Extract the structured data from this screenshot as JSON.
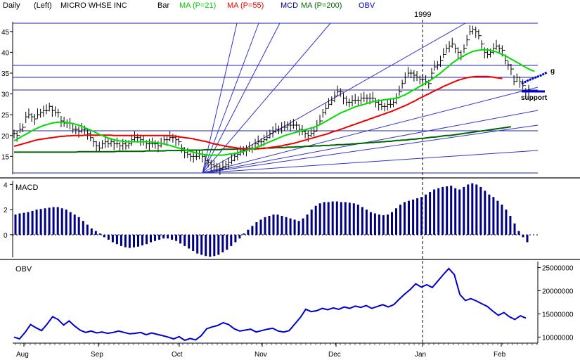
{
  "header": {
    "period": "Daily",
    "side": "(Left)",
    "security": "MICRO WHSE INC",
    "style": "Bar",
    "ma21": "MA (P=21)",
    "ma55": "MA (P=55)",
    "mcd": "MCD",
    "ma200": "MA (P=200)",
    "obv": "OBV",
    "year_marker": "1999"
  },
  "colors": {
    "ma21": "#00dd00",
    "ma55": "#ee0000",
    "ma200": "#006600",
    "macd": "#000080",
    "obv": "#0000cc",
    "gann": "#3333cc",
    "price": "#000000"
  },
  "annotations": {
    "support": "support",
    "g": "g"
  },
  "panels": {
    "macd_title": "MACD",
    "obv_title": "OBV"
  },
  "chart_data": [
    {
      "type": "bar",
      "name_shown": "MICRO WHSE INC",
      "ylim": [
        11,
        47
      ],
      "yticks": [
        "15",
        "20",
        "25",
        "30",
        "35",
        "40",
        "45"
      ],
      "xticks": [
        "Aug",
        "Sep",
        "Oct",
        "Nov",
        "Dec",
        "Jan",
        "Feb"
      ],
      "x_start": "1998-08-03",
      "x_end": "1999-02-12",
      "close": [
        20.5,
        20,
        21.5,
        22,
        24.5,
        25,
        24.5,
        24,
        25,
        25.5,
        26,
        26,
        27,
        26,
        25.5,
        25.5,
        23.5,
        23,
        23,
        23,
        21.5,
        21.5,
        21,
        21.5,
        21.5,
        20.5,
        19.5,
        18.5,
        17.5,
        17,
        18,
        18.5,
        18,
        18.5,
        18,
        18,
        17.5,
        18,
        17.5,
        18,
        19,
        19.5,
        19.5,
        19,
        18.5,
        18,
        18,
        18,
        18,
        17.5,
        18,
        19,
        19,
        19.5,
        19.5,
        19,
        18.5,
        17,
        16,
        15.5,
        15,
        15,
        15,
        15.5,
        15,
        14,
        13.5,
        13,
        12.5,
        12.5,
        12,
        12.5,
        13,
        13.5,
        14,
        15,
        15.5,
        16,
        16.5,
        16.5,
        17,
        17,
        18,
        18.5,
        18.5,
        19,
        19.5,
        20.5,
        21,
        21.5,
        21.5,
        22,
        22,
        22.5,
        22.5,
        22.5,
        22.5,
        21.5,
        21,
        20.5,
        20,
        20.5,
        21,
        22.5,
        23.5,
        25.5,
        26.5,
        27.5,
        28.5,
        29.5,
        30.5,
        30.5,
        29,
        28,
        28,
        28.5,
        28.5,
        28.5,
        29,
        29,
        29,
        29,
        29,
        28,
        27.5,
        27,
        27,
        27.5,
        27.5,
        28,
        29,
        30.5,
        32.5,
        34,
        35,
        35,
        34.5,
        34,
        33.5,
        33.5,
        33,
        32.5,
        35,
        36.5,
        37,
        38,
        39.5,
        41,
        41.5,
        42,
        41,
        40,
        39,
        41,
        43,
        45,
        45.5,
        45,
        44,
        42,
        40,
        39.5,
        40,
        41,
        41.5,
        41,
        40.5,
        38,
        37,
        36,
        33,
        34,
        33,
        32,
        30.5,
        31
      ],
      "ma21": [
        18.7,
        19.1,
        19.5,
        19.9,
        20.3,
        20.7,
        21.1,
        21.5,
        21.8,
        22.1,
        22.4,
        22.6,
        22.8,
        23,
        23.1,
        23.2,
        23.2,
        23.2,
        23.1,
        23,
        22.9,
        22.7,
        22.5,
        22.2,
        21.9,
        21.6,
        21.3,
        21,
        20.6,
        20.3,
        20,
        19.7,
        19.4,
        19.2,
        19,
        18.8,
        18.7,
        18.6,
        18.5,
        18.5,
        18.5,
        18.5,
        18.5,
        18.5,
        18.5,
        18.5,
        18.5,
        18.4,
        18.3,
        18.2,
        18.1,
        18,
        17.8,
        17.6,
        17.4,
        17.2,
        17,
        16.8,
        16.6,
        16.4,
        16.2,
        16,
        15.8,
        15.6,
        15.5,
        15.4,
        15.3,
        15.3,
        15.3,
        15.3,
        15.3,
        15.3,
        15.4,
        15.5,
        15.6,
        15.7,
        15.8,
        16,
        16.2,
        16.4,
        16.6,
        16.8,
        17,
        17.3,
        17.6,
        17.9,
        18.2,
        18.5,
        18.8,
        19.1,
        19.4,
        19.7,
        20,
        20.2,
        20.4,
        20.6,
        20.8,
        21,
        21.2,
        21.4,
        21.6,
        21.8,
        22,
        22.3,
        22.6,
        23,
        23.4,
        23.8,
        24.2,
        24.6,
        25,
        25.4,
        25.7,
        26,
        26.3,
        26.6,
        26.9,
        27.1,
        27.3,
        27.5,
        27.7,
        27.9,
        28.1,
        28.3,
        28.4,
        28.5,
        28.6,
        28.7,
        28.8,
        28.9,
        29,
        29.2,
        29.5,
        29.8,
        30.2,
        30.6,
        31,
        31.4,
        31.8,
        32.2,
        32.6,
        33,
        33.5,
        34,
        34.5,
        35,
        35.6,
        36.2,
        36.8,
        37.4,
        37.9,
        38.4,
        38.8,
        39.2,
        39.6,
        39.9,
        40.2,
        40.4,
        40.5,
        40.6,
        40.6,
        40.6,
        40.5,
        40.3,
        40.1,
        39.8,
        39.5,
        39.2,
        38.8,
        38.4,
        38,
        37.6,
        37.2,
        36.8,
        36.4,
        36,
        35.7,
        35.4
      ],
      "ma55": [
        17.4,
        17.6,
        17.8,
        18,
        18.2,
        18.4,
        18.6,
        18.8,
        19,
        19.1,
        19.2,
        19.3,
        19.4,
        19.5,
        19.6,
        19.7,
        19.8,
        19.8,
        19.9,
        19.9,
        20,
        20,
        20,
        20,
        20.1,
        20.1,
        20.1,
        20.1,
        20.1,
        20.1,
        20.1,
        20.1,
        20.1,
        20.1,
        20,
        20,
        20,
        20,
        20,
        20,
        20,
        20,
        20,
        20,
        20,
        20,
        20,
        20,
        20,
        20,
        20,
        20,
        20,
        19.9,
        19.9,
        19.8,
        19.7,
        19.6,
        19.5,
        19.4,
        19.3,
        19.2,
        19,
        18.9,
        18.7,
        18.6,
        18.4,
        18.2,
        18,
        17.9,
        17.7,
        17.6,
        17.4,
        17.3,
        17.2,
        17.1,
        17,
        16.9,
        16.9,
        16.8,
        16.8,
        16.8,
        16.8,
        16.8,
        16.9,
        16.9,
        17,
        17.1,
        17.2,
        17.3,
        17.4,
        17.5,
        17.7,
        17.8,
        18,
        18.1,
        18.3,
        18.5,
        18.7,
        18.9,
        19.1,
        19.3,
        19.5,
        19.7,
        19.9,
        20.1,
        20.3,
        20.5,
        20.8,
        21,
        21.2,
        21.5,
        21.7,
        22,
        22.2,
        22.5,
        22.7,
        23,
        23.2,
        23.5,
        23.7,
        24,
        24.2,
        24.5,
        24.7,
        25,
        25.2,
        25.5,
        25.7,
        26,
        26.3,
        26.6,
        26.9,
        27.2,
        27.5,
        27.9,
        28.2,
        28.6,
        29,
        29.3,
        29.7,
        30,
        30.4,
        30.7,
        31.1,
        31.4,
        31.8,
        32.1,
        32.4,
        32.7,
        33,
        33.3,
        33.5,
        33.7,
        33.9,
        34,
        34.1,
        34.2,
        34.2,
        34.2,
        34.2,
        34.2,
        34.1,
        34,
        33.9,
        33.8,
        33.7
      ],
      "ma200": [
        16,
        16,
        16,
        16,
        16,
        16,
        16,
        16,
        16,
        16,
        16,
        16,
        16,
        16,
        16,
        16,
        16,
        16,
        16,
        16,
        16,
        16,
        16.1,
        16.1,
        16.1,
        16.1,
        16.1,
        16.1,
        16.1,
        16.1,
        16.1,
        16.1,
        16.1,
        16.1,
        16.1,
        16.2,
        16.2,
        16.2,
        16.2,
        16.2,
        16.2,
        16.2,
        16.2,
        16.2,
        16.2,
        16.3,
        16.3,
        16.3,
        16.3,
        16.3,
        16.3,
        16.3,
        16.4,
        16.4,
        16.4,
        16.4,
        16.4,
        16.4,
        16.4,
        16.5,
        16.5,
        16.5,
        16.5,
        16.5,
        16.5,
        16.6,
        16.6,
        16.6,
        16.6,
        16.6,
        16.6,
        16.7,
        16.7,
        16.7,
        16.7,
        16.7,
        16.8,
        16.8,
        16.8,
        16.8,
        16.8,
        16.9,
        16.9,
        16.9,
        16.9,
        17,
        17,
        17,
        17,
        17.1,
        17.1,
        17.1,
        17.1,
        17.2,
        17.2,
        17.2,
        17.3,
        17.3,
        17.3,
        17.4,
        17.4,
        17.4,
        17.5,
        17.5,
        17.5,
        17.6,
        17.6,
        17.6,
        17.7,
        17.7,
        17.8,
        17.8,
        17.8,
        17.9,
        17.9,
        18,
        18,
        18.1,
        18.1,
        18.2,
        18.2,
        18.3,
        18.3,
        18.4,
        18.4,
        18.5,
        18.5,
        18.6,
        18.6,
        18.7,
        18.8,
        18.8,
        18.9,
        18.9,
        19,
        19.1,
        19.1,
        19.2,
        19.3,
        19.3,
        19.4,
        19.5,
        19.6,
        19.6,
        19.7,
        19.8,
        19.9,
        20,
        20,
        20.1,
        20.2,
        20.3,
        20.4,
        20.5,
        20.6,
        20.7,
        20.8,
        20.9,
        21,
        21.1,
        21.2,
        21.3,
        21.4,
        21.5,
        21.6,
        21.7,
        21.8,
        21.9,
        22,
        22.1
      ]
    },
    {
      "type": "bar",
      "name_shown": "MACD",
      "ylim": [
        -1.8,
        4.3
      ],
      "yticks": [
        "0",
        "2",
        "4"
      ],
      "values": [
        1.6,
        1.7,
        1.75,
        1.8,
        1.9,
        2.0,
        2.05,
        2.1,
        2.15,
        2.2,
        2.2,
        2.1,
        2.0,
        1.8,
        1.6,
        1.4,
        1.1,
        0.8,
        0.5,
        0.3,
        0.1,
        -0.2,
        -0.4,
        -0.6,
        -0.75,
        -0.9,
        -1.0,
        -1.05,
        -1.0,
        -0.95,
        -0.85,
        -0.75,
        -0.6,
        -0.5,
        -0.4,
        -0.3,
        -0.3,
        -0.4,
        -0.5,
        -0.7,
        -0.9,
        -1.1,
        -1.3,
        -1.5,
        -1.6,
        -1.7,
        -1.75,
        -1.7,
        -1.6,
        -1.4,
        -1.2,
        -0.9,
        -0.6,
        -0.3,
        0.1,
        0.4,
        0.7,
        1.0,
        1.2,
        1.4,
        1.5,
        1.6,
        1.6,
        1.5,
        1.4,
        1.3,
        1.2,
        1.1,
        1.3,
        1.6,
        2.0,
        2.3,
        2.5,
        2.6,
        2.6,
        2.65,
        2.65,
        2.6,
        2.6,
        2.55,
        2.5,
        2.4,
        2.2,
        2.0,
        1.8,
        1.7,
        1.6,
        1.55,
        1.6,
        1.8,
        2.1,
        2.4,
        2.6,
        2.7,
        2.8,
        2.9,
        3.0,
        3.2,
        3.4,
        3.6,
        3.7,
        3.8,
        3.85,
        3.9,
        3.7,
        3.6,
        3.8,
        4.0,
        4.1,
        4.0,
        3.8,
        3.5,
        3.2,
        3.0,
        2.7,
        2.4,
        2.0,
        1.5,
        0.9,
        0.3,
        -0.2,
        -0.6
      ]
    },
    {
      "type": "line",
      "name_shown": "OBV",
      "ylim": [
        9000000,
        26000000
      ],
      "yticks": [
        "10000000",
        "15000000",
        "20000000",
        "25000000"
      ],
      "values": [
        10000000,
        9600000,
        11000000,
        12700000,
        12000000,
        11400000,
        12800000,
        14400000,
        13800000,
        12600000,
        13500000,
        12400000,
        11500000,
        11000000,
        11300000,
        10900000,
        11100000,
        10800000,
        11000000,
        11300000,
        11000000,
        10700000,
        10800000,
        11000000,
        10500000,
        10900000,
        10600000,
        10300000,
        10000000,
        9600000,
        10100000,
        9300000,
        9700000,
        9400000,
        10300000,
        11800000,
        12200000,
        12500000,
        13100000,
        12700000,
        11800000,
        11300000,
        11500000,
        11700000,
        11100000,
        11400000,
        11700000,
        11900000,
        11300000,
        11100000,
        11400000,
        12800000,
        14200000,
        16000000,
        15500000,
        15700000,
        16200000,
        15900000,
        16300000,
        16000000,
        16500000,
        16200000,
        16700000,
        16400000,
        16800000,
        16200000,
        16600000,
        17000000,
        16500000,
        17000000,
        18200000,
        19300000,
        20300000,
        21500000,
        20800000,
        21300000,
        20700000,
        22100000,
        23500000,
        24800000,
        23500000,
        19200000,
        17900000,
        18300000,
        17800000,
        17200000,
        16600000,
        15600000,
        14700000,
        15300000,
        14400000,
        13800000,
        14600000,
        14100000
      ]
    }
  ]
}
